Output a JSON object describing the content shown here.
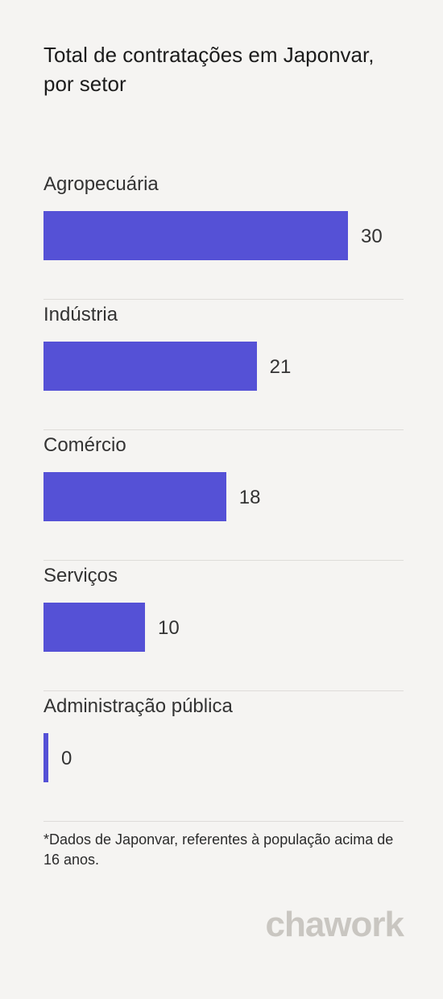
{
  "header": {
    "title": "Total de contratações em Japonvar, por setor"
  },
  "chart_data": {
    "type": "bar",
    "orientation": "horizontal",
    "title": "Total de contratações em Japonvar, por setor",
    "categories": [
      "Agropecuária",
      "Indústria",
      "Comércio",
      "Serviços",
      "Administração pública"
    ],
    "values": [
      30,
      21,
      18,
      10,
      0
    ],
    "xlim": [
      0,
      30
    ],
    "bar_color": "#5551d6",
    "grid": false,
    "legend": "none"
  },
  "footnote": "*Dados de Japonvar, referentes à população acima de 16 anos.",
  "brand": {
    "logo_text": "chawork"
  },
  "colors": {
    "background": "#f5f4f2",
    "bar": "#5551d6",
    "logo": "#c9c6c1"
  }
}
